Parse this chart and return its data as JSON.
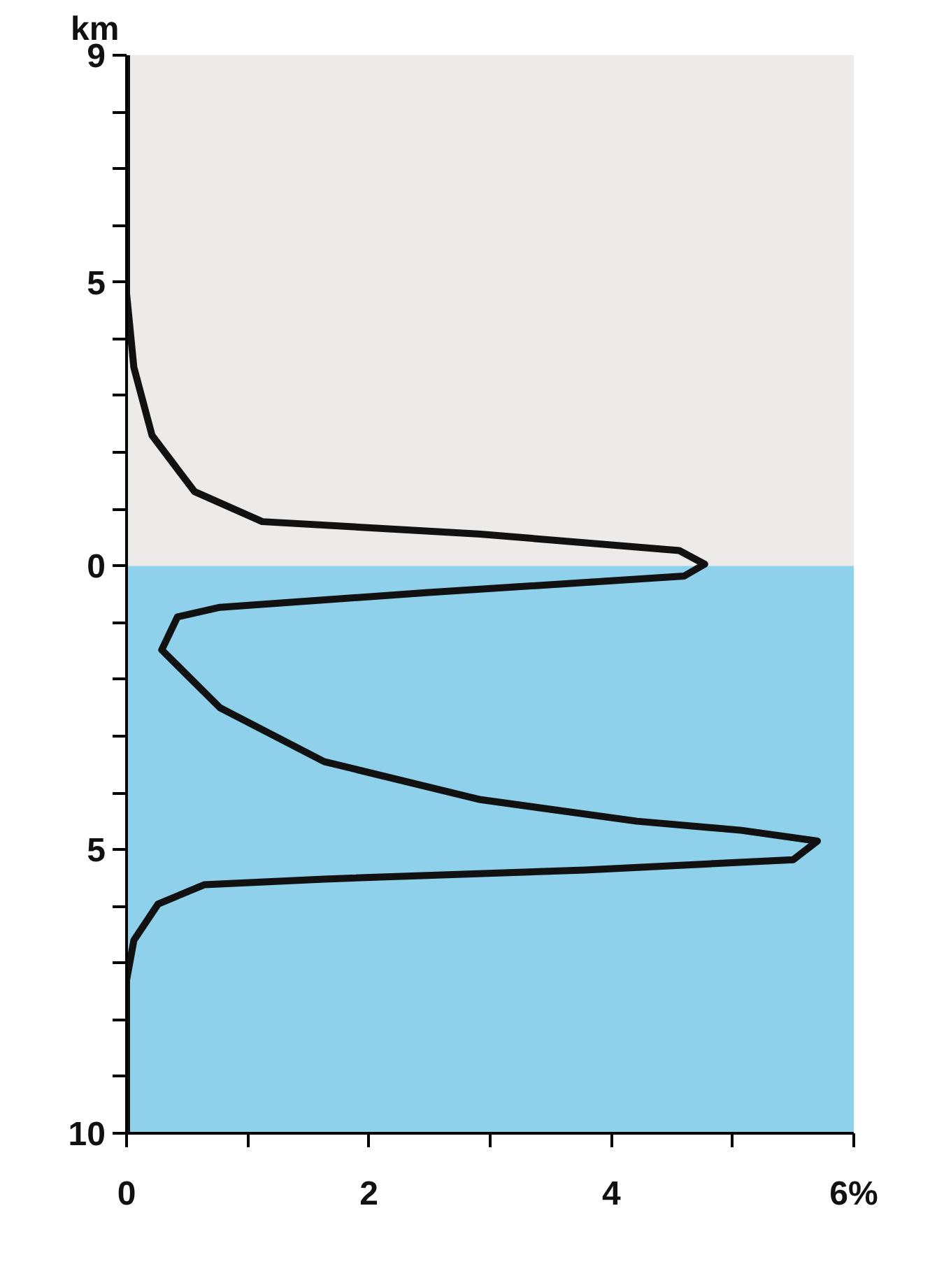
{
  "chart_data": {
    "type": "line",
    "ylabel": "km",
    "series": [
      {
        "color": "#111111",
        "x": [
          0,
          0,
          0.06,
          0.21,
          0.56,
          1.12,
          2.92,
          4.56,
          4.77,
          4.6,
          2.49,
          0.77,
          0.42,
          0.29,
          0.77,
          1.63,
          2.92,
          4.21,
          5.07,
          5.7,
          5.5,
          3.78,
          1.63,
          0.64,
          0.26,
          0.06,
          0,
          0
        ],
        "values": [
          9,
          4.8,
          3.5,
          2.3,
          1.31,
          0.78,
          0.56,
          0.27,
          0.03,
          -0.18,
          -0.47,
          -0.73,
          -0.9,
          -1.48,
          -2.5,
          -3.45,
          -4.12,
          -4.5,
          -4.66,
          -4.85,
          -5.18,
          -5.36,
          -5.52,
          -5.62,
          -5.96,
          -6.6,
          -7.3,
          -10
        ]
      }
    ],
    "xlim": [
      0,
      6
    ],
    "ylim": [
      -10,
      9
    ],
    "xticks": [
      0,
      {
        "value": 1,
        "label": null
      },
      2,
      {
        "value": 3,
        "label": null
      },
      4,
      {
        "value": 5,
        "label": null
      },
      {
        "value": 6,
        "label": "6%"
      }
    ],
    "yticks": [
      9,
      {
        "value": 8,
        "label": null
      },
      {
        "value": 7,
        "label": null
      },
      {
        "value": 6,
        "label": null
      },
      5,
      {
        "value": 4,
        "label": null
      },
      {
        "value": 3,
        "label": null
      },
      {
        "value": 2,
        "label": null
      },
      {
        "value": 1,
        "label": null
      },
      0,
      {
        "value": -1,
        "label": null
      },
      {
        "value": -2,
        "label": null
      },
      {
        "value": -3,
        "label": null
      },
      {
        "value": -4,
        "label": null
      },
      {
        "value": -5,
        "label": "5"
      },
      {
        "value": -6,
        "label": null
      },
      {
        "value": -7,
        "label": null
      },
      {
        "value": -8,
        "label": null
      },
      {
        "value": -9,
        "label": null
      },
      {
        "value": -10,
        "label": "10"
      }
    ],
    "bands": [
      {
        "axis": "y",
        "from": 0,
        "to": 9,
        "color": "#ecebe9"
      },
      {
        "axis": "y",
        "from": -10,
        "to": 0,
        "color": "#8fd0ea"
      }
    ],
    "grid": false,
    "marker": "none",
    "line_style": "solid"
  }
}
